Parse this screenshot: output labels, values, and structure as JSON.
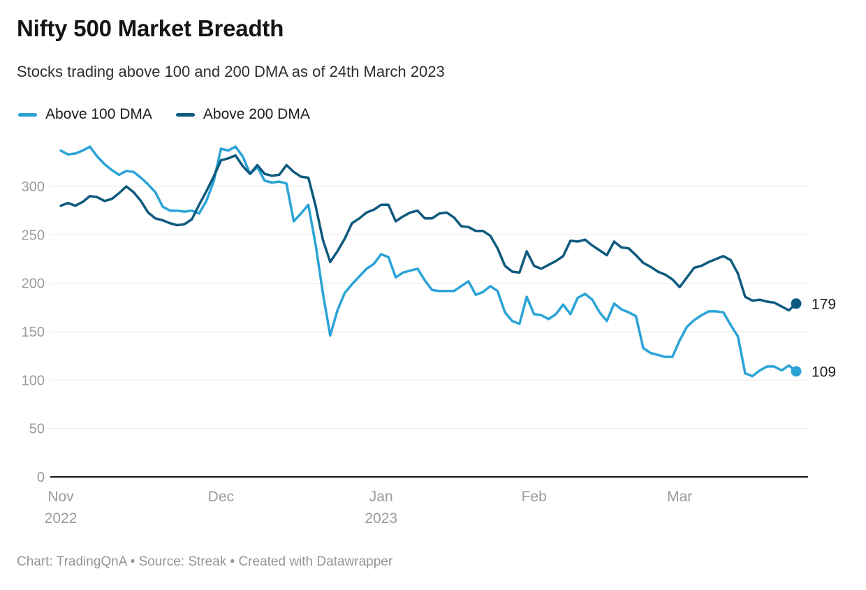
{
  "header": {
    "title": "Nifty 500 Market Breadth",
    "subtitle": "Stocks trading above 100 and 200 DMA as of 24th March 2023"
  },
  "footer": {
    "text": "Chart: TradingQnA • Source: Streak • Created with Datawrapper"
  },
  "chart_data": {
    "type": "line",
    "title": "Nifty 500 Market Breadth",
    "subtitle": "Stocks trading above 100 and 200 DMA as of 24th March 2023",
    "ylim": [
      0,
      350
    ],
    "grid": "horizontal",
    "legend_position": "top-left",
    "yticks": [
      0,
      50,
      100,
      150,
      200,
      250,
      300
    ],
    "xticks": [
      {
        "label": "Nov",
        "sublabel": "2022",
        "index": 0
      },
      {
        "label": "Dec",
        "sublabel": "",
        "index": 22
      },
      {
        "label": "Jan",
        "sublabel": "2023",
        "index": 44
      },
      {
        "label": "Feb",
        "sublabel": "",
        "index": 65
      },
      {
        "label": "Mar",
        "sublabel": "",
        "index": 85
      }
    ],
    "x_description": "Daily trading sessions, 1 Nov 2022 to 24 Mar 2023",
    "series": [
      {
        "name": "Above 100 DMA",
        "color": "#2BA3D6",
        "end_label": "109",
        "values": [
          337,
          333,
          334,
          337,
          341,
          331,
          323,
          317,
          312,
          316,
          315,
          309,
          302,
          294,
          279,
          275,
          275,
          274,
          275,
          272,
          285,
          305,
          339,
          337,
          341,
          331,
          313,
          320,
          306,
          304,
          305,
          303,
          264,
          272,
          281,
          240,
          190,
          146,
          172,
          190,
          199,
          207,
          215,
          220,
          230,
          227,
          206,
          211,
          213,
          215,
          203,
          193,
          192,
          192,
          192,
          197,
          202,
          188,
          191,
          197,
          192,
          170,
          161,
          158,
          186,
          168,
          167,
          163,
          168,
          178,
          168,
          185,
          189,
          183,
          170,
          161,
          179,
          173,
          170,
          166,
          133,
          128,
          126,
          124,
          124,
          141,
          155,
          162,
          167,
          171,
          171,
          170,
          157,
          145,
          107,
          104,
          110,
          114,
          114,
          110,
          115,
          109
        ]
      },
      {
        "name": "Above 200 DMA",
        "color": "#0E5A7E",
        "end_label": "179",
        "values": [
          280,
          283,
          280,
          284,
          290,
          289,
          285,
          287,
          293,
          300,
          294,
          285,
          273,
          267,
          265,
          262,
          260,
          261,
          266,
          281,
          295,
          310,
          327,
          329,
          332,
          321,
          313,
          322,
          313,
          311,
          312,
          322,
          315,
          310,
          309,
          280,
          245,
          222,
          233,
          246,
          262,
          267,
          273,
          276,
          281,
          281,
          264,
          269,
          273,
          275,
          267,
          267,
          272,
          273,
          268,
          259,
          258,
          254,
          254,
          249,
          236,
          218,
          212,
          211,
          233,
          218,
          215,
          219,
          223,
          228,
          244,
          243,
          245,
          239,
          234,
          229,
          243,
          237,
          236,
          229,
          221,
          217,
          212,
          209,
          204,
          196,
          206,
          216,
          218,
          222,
          225,
          228,
          224,
          210,
          186,
          182,
          183,
          181,
          180,
          176,
          172,
          179
        ]
      }
    ],
    "axis_colors": {
      "tick_label": "#9b9b9b",
      "gridline": "#e9e9e9",
      "baseline": "#161616"
    }
  }
}
